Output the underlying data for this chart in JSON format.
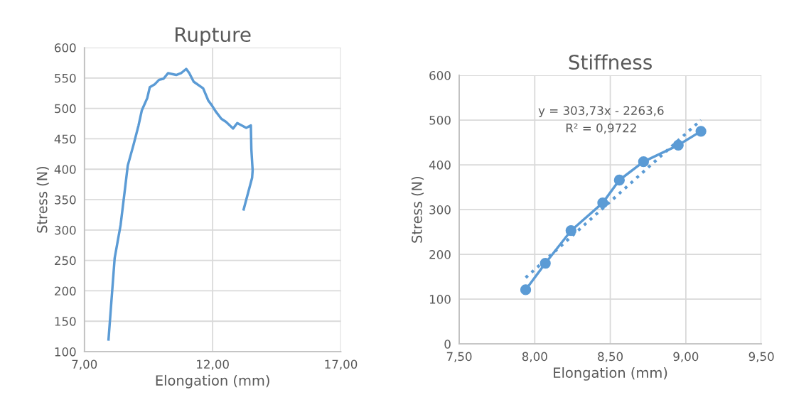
{
  "chart_data": [
    {
      "type": "line",
      "title": "Rupture",
      "xlabel": "Elongation (mm)",
      "ylabel": "Stress (N)",
      "series": [
        {
          "color": "#5b9bd5",
          "x": [
            7.94,
            8.18,
            8.41,
            8.58,
            8.69,
            8.92,
            9.11,
            9.24,
            9.45,
            9.55,
            9.75,
            9.91,
            10.09,
            10.26,
            10.58,
            10.77,
            10.97,
            11.09,
            11.26,
            11.63,
            11.83,
            11.97,
            12.12,
            12.34,
            12.52,
            12.8,
            12.96,
            13.31,
            13.49,
            13.51,
            13.56,
            13.54,
            13.21
          ],
          "values": [
            120,
            254,
            308,
            367,
            406,
            441,
            472,
            497,
            517,
            535,
            540,
            547,
            549,
            558,
            555,
            558,
            565,
            558,
            544,
            533,
            513,
            505,
            495,
            483,
            478,
            467,
            476,
            468,
            472,
            433,
            398,
            386,
            334
          ]
        }
      ],
      "xlim": [
        7,
        17
      ],
      "xticks": [
        {
          "value": 7,
          "label": "7,00"
        },
        {
          "value": 12,
          "label": "12,00"
        },
        {
          "value": 17,
          "label": "17,00"
        }
      ],
      "ylim": [
        100,
        600
      ],
      "yticks": [
        100,
        150,
        200,
        250,
        300,
        350,
        400,
        450,
        500,
        550,
        600
      ],
      "grid": true,
      "marker": "none",
      "line_style": "solid"
    },
    {
      "type": "line",
      "title": "Stiffness",
      "xlabel": "Elongation (mm)",
      "ylabel": "Stress (N)",
      "series": [
        {
          "color": "#5b9bd5",
          "marker": "circle",
          "line_style": "solid",
          "x": [
            7.94,
            8.07,
            8.24,
            8.45,
            8.56,
            8.72,
            8.95,
            9.1
          ],
          "values": [
            121,
            180,
            253,
            315,
            366,
            407,
            444,
            475
          ]
        },
        {
          "color": "#5b9bd5",
          "marker": "none",
          "line_style": "dotted",
          "x": [
            7.94,
            9.1
          ],
          "values": [
            148,
            500
          ]
        }
      ],
      "annotations": [
        "y = 303,73x - 2263,6",
        "R² = 0,9722"
      ],
      "xlim": [
        7.5,
        9.5
      ],
      "xticks": [
        {
          "value": 7.5,
          "label": "7,50"
        },
        {
          "value": 8.0,
          "label": "8,00"
        },
        {
          "value": 8.5,
          "label": "8,50"
        },
        {
          "value": 9.0,
          "label": "9,00"
        },
        {
          "value": 9.5,
          "label": "9,50"
        }
      ],
      "ylim": [
        0,
        600
      ],
      "yticks": [
        0,
        100,
        200,
        300,
        400,
        500,
        600
      ],
      "grid": true,
      "marker": "circle"
    }
  ]
}
